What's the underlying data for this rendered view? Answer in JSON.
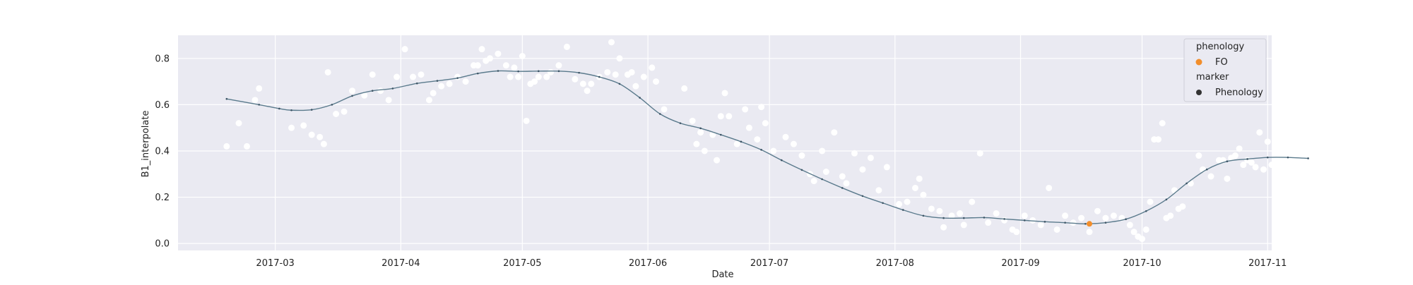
{
  "chart_data": {
    "type": "scatter",
    "xlabel": "Date",
    "ylabel": "B1_interpolate",
    "x_type": "date",
    "xlim": [
      "2017-02-05",
      "2017-11-02"
    ],
    "ylim": [
      -0.03,
      0.9
    ],
    "grid": true,
    "x_ticks": [
      "2017-03",
      "2017-04",
      "2017-05",
      "2017-06",
      "2017-07",
      "2017-08",
      "2017-09",
      "2017-10",
      "2017-11"
    ],
    "x_tick_dates": [
      "2017-03-01",
      "2017-04-01",
      "2017-05-01",
      "2017-06-01",
      "2017-07-01",
      "2017-08-01",
      "2017-09-01",
      "2017-10-01",
      "2017-11-01"
    ],
    "y_ticks": [
      0.0,
      0.2,
      0.4,
      0.6,
      0.8
    ],
    "y_tick_labels": [
      "0.0",
      "0.2",
      "0.4",
      "0.6",
      "0.8"
    ],
    "legend": {
      "placement": "top-right",
      "title_1": "phenology",
      "item_1": "FO",
      "title_2": "marker",
      "item_2": "Phenology"
    },
    "colors": {
      "background": "#eaeaf2",
      "grid": "#ffffff",
      "raw_points": "#ffffff",
      "curve": "#5a7a8c",
      "curve_markers": "#3d5566",
      "phenology_fo": "#f28e2b",
      "phenology_marker": "#333333"
    },
    "series": [
      {
        "kind": "raw_points",
        "points": [
          [
            "2017-02-17",
            0.42
          ],
          [
            "2017-02-20",
            0.52
          ],
          [
            "2017-02-22",
            0.42
          ],
          [
            "2017-02-24",
            0.62
          ],
          [
            "2017-02-25",
            0.67
          ],
          [
            "2017-03-05",
            0.5
          ],
          [
            "2017-03-08",
            0.51
          ],
          [
            "2017-03-10",
            0.47
          ],
          [
            "2017-03-12",
            0.46
          ],
          [
            "2017-03-13",
            0.43
          ],
          [
            "2017-03-14",
            0.74
          ],
          [
            "2017-03-16",
            0.56
          ],
          [
            "2017-03-18",
            0.57
          ],
          [
            "2017-03-20",
            0.66
          ],
          [
            "2017-03-23",
            0.64
          ],
          [
            "2017-03-25",
            0.73
          ],
          [
            "2017-03-27",
            0.66
          ],
          [
            "2017-03-29",
            0.62
          ],
          [
            "2017-03-31",
            0.72
          ],
          [
            "2017-04-02",
            0.84
          ],
          [
            "2017-04-04",
            0.72
          ],
          [
            "2017-04-06",
            0.73
          ],
          [
            "2017-04-08",
            0.62
          ],
          [
            "2017-04-09",
            0.65
          ],
          [
            "2017-04-11",
            0.68
          ],
          [
            "2017-04-13",
            0.69
          ],
          [
            "2017-04-15",
            0.72
          ],
          [
            "2017-04-17",
            0.7
          ],
          [
            "2017-04-19",
            0.77
          ],
          [
            "2017-04-20",
            0.77
          ],
          [
            "2017-04-21",
            0.84
          ],
          [
            "2017-04-22",
            0.79
          ],
          [
            "2017-04-23",
            0.8
          ],
          [
            "2017-04-25",
            0.82
          ],
          [
            "2017-04-27",
            0.77
          ],
          [
            "2017-04-28",
            0.72
          ],
          [
            "2017-04-29",
            0.76
          ],
          [
            "2017-04-30",
            0.72
          ],
          [
            "2017-05-01",
            0.81
          ],
          [
            "2017-05-02",
            0.53
          ],
          [
            "2017-05-03",
            0.69
          ],
          [
            "2017-05-04",
            0.7
          ],
          [
            "2017-05-05",
            0.72
          ],
          [
            "2017-05-07",
            0.72
          ],
          [
            "2017-05-08",
            0.74
          ],
          [
            "2017-05-10",
            0.77
          ],
          [
            "2017-05-12",
            0.85
          ],
          [
            "2017-05-14",
            0.71
          ],
          [
            "2017-05-16",
            0.69
          ],
          [
            "2017-05-17",
            0.66
          ],
          [
            "2017-05-18",
            0.69
          ],
          [
            "2017-05-20",
            0.72
          ],
          [
            "2017-05-22",
            0.74
          ],
          [
            "2017-05-23",
            0.87
          ],
          [
            "2017-05-24",
            0.73
          ],
          [
            "2017-05-25",
            0.8
          ],
          [
            "2017-05-27",
            0.73
          ],
          [
            "2017-05-28",
            0.74
          ],
          [
            "2017-05-29",
            0.68
          ],
          [
            "2017-05-31",
            0.72
          ],
          [
            "2017-06-02",
            0.76
          ],
          [
            "2017-06-03",
            0.7
          ],
          [
            "2017-06-05",
            0.58
          ],
          [
            "2017-06-10",
            0.67
          ],
          [
            "2017-06-12",
            0.53
          ],
          [
            "2017-06-13",
            0.43
          ],
          [
            "2017-06-14",
            0.48
          ],
          [
            "2017-06-15",
            0.4
          ],
          [
            "2017-06-17",
            0.47
          ],
          [
            "2017-06-18",
            0.36
          ],
          [
            "2017-06-19",
            0.55
          ],
          [
            "2017-06-20",
            0.65
          ],
          [
            "2017-06-21",
            0.55
          ],
          [
            "2017-06-23",
            0.43
          ],
          [
            "2017-06-25",
            0.58
          ],
          [
            "2017-06-26",
            0.5
          ],
          [
            "2017-06-28",
            0.45
          ],
          [
            "2017-06-29",
            0.59
          ],
          [
            "2017-06-30",
            0.52
          ],
          [
            "2017-07-02",
            0.4
          ],
          [
            "2017-07-05",
            0.46
          ],
          [
            "2017-07-07",
            0.43
          ],
          [
            "2017-07-09",
            0.38
          ],
          [
            "2017-07-11",
            0.3
          ],
          [
            "2017-07-12",
            0.27
          ],
          [
            "2017-07-14",
            0.4
          ],
          [
            "2017-07-15",
            0.31
          ],
          [
            "2017-07-17",
            0.48
          ],
          [
            "2017-07-19",
            0.29
          ],
          [
            "2017-07-20",
            0.26
          ],
          [
            "2017-07-22",
            0.39
          ],
          [
            "2017-07-24",
            0.32
          ],
          [
            "2017-07-26",
            0.37
          ],
          [
            "2017-07-28",
            0.23
          ],
          [
            "2017-07-30",
            0.33
          ],
          [
            "2017-08-02",
            0.17
          ],
          [
            "2017-08-04",
            0.18
          ],
          [
            "2017-08-06",
            0.24
          ],
          [
            "2017-08-07",
            0.28
          ],
          [
            "2017-08-08",
            0.21
          ],
          [
            "2017-08-10",
            0.15
          ],
          [
            "2017-08-12",
            0.14
          ],
          [
            "2017-08-13",
            0.07
          ],
          [
            "2017-08-15",
            0.12
          ],
          [
            "2017-08-17",
            0.13
          ],
          [
            "2017-08-18",
            0.08
          ],
          [
            "2017-08-20",
            0.18
          ],
          [
            "2017-08-22",
            0.39
          ],
          [
            "2017-08-24",
            0.09
          ],
          [
            "2017-08-26",
            0.13
          ],
          [
            "2017-08-28",
            0.1
          ],
          [
            "2017-08-30",
            0.06
          ],
          [
            "2017-08-31",
            0.05
          ],
          [
            "2017-09-02",
            0.12
          ],
          [
            "2017-09-04",
            0.1
          ],
          [
            "2017-09-06",
            0.08
          ],
          [
            "2017-09-08",
            0.24
          ],
          [
            "2017-09-10",
            0.06
          ],
          [
            "2017-09-12",
            0.12
          ],
          [
            "2017-09-14",
            0.09
          ],
          [
            "2017-09-16",
            0.11
          ],
          [
            "2017-09-18",
            0.05
          ],
          [
            "2017-09-20",
            0.14
          ],
          [
            "2017-09-22",
            0.11
          ],
          [
            "2017-09-24",
            0.12
          ],
          [
            "2017-09-26",
            0.11
          ],
          [
            "2017-09-28",
            0.08
          ],
          [
            "2017-09-29",
            0.05
          ],
          [
            "2017-09-30",
            0.03
          ],
          [
            "2017-10-01",
            0.02
          ],
          [
            "2017-10-02",
            0.06
          ],
          [
            "2017-10-03",
            0.18
          ],
          [
            "2017-10-04",
            0.45
          ],
          [
            "2017-10-05",
            0.45
          ],
          [
            "2017-10-06",
            0.52
          ],
          [
            "2017-10-07",
            0.11
          ],
          [
            "2017-10-08",
            0.12
          ],
          [
            "2017-10-09",
            0.23
          ],
          [
            "2017-10-10",
            0.15
          ],
          [
            "2017-10-11",
            0.16
          ],
          [
            "2017-10-13",
            0.26
          ],
          [
            "2017-10-15",
            0.38
          ],
          [
            "2017-10-16",
            0.32
          ],
          [
            "2017-10-18",
            0.29
          ],
          [
            "2017-10-20",
            0.36
          ],
          [
            "2017-10-21",
            0.36
          ],
          [
            "2017-10-22",
            0.28
          ],
          [
            "2017-10-23",
            0.37
          ],
          [
            "2017-10-24",
            0.38
          ],
          [
            "2017-10-25",
            0.41
          ],
          [
            "2017-10-26",
            0.34
          ],
          [
            "2017-10-27",
            0.36
          ],
          [
            "2017-10-28",
            0.35
          ],
          [
            "2017-10-29",
            0.33
          ],
          [
            "2017-10-30",
            0.48
          ],
          [
            "2017-10-31",
            0.32
          ],
          [
            "2017-11-01",
            0.44
          ],
          [
            "2017-11-02",
            0.34
          ]
        ]
      },
      {
        "kind": "interpolated_curve",
        "points": [
          [
            "2017-02-17",
            0.625
          ],
          [
            "2017-02-25",
            0.6
          ],
          [
            "2017-03-02",
            0.583
          ],
          [
            "2017-03-05",
            0.576
          ],
          [
            "2017-03-10",
            0.578
          ],
          [
            "2017-03-15",
            0.6
          ],
          [
            "2017-03-20",
            0.638
          ],
          [
            "2017-03-25",
            0.66
          ],
          [
            "2017-03-30",
            0.67
          ],
          [
            "2017-04-05",
            0.692
          ],
          [
            "2017-04-10",
            0.703
          ],
          [
            "2017-04-15",
            0.715
          ],
          [
            "2017-04-20",
            0.735
          ],
          [
            "2017-04-25",
            0.746
          ],
          [
            "2017-04-30",
            0.744
          ],
          [
            "2017-05-05",
            0.745
          ],
          [
            "2017-05-10",
            0.745
          ],
          [
            "2017-05-15",
            0.738
          ],
          [
            "2017-05-20",
            0.72
          ],
          [
            "2017-05-25",
            0.69
          ],
          [
            "2017-05-30",
            0.63
          ],
          [
            "2017-06-04",
            0.56
          ],
          [
            "2017-06-09",
            0.52
          ],
          [
            "2017-06-14",
            0.498
          ],
          [
            "2017-06-19",
            0.47
          ],
          [
            "2017-06-24",
            0.44
          ],
          [
            "2017-06-29",
            0.405
          ],
          [
            "2017-07-04",
            0.36
          ],
          [
            "2017-07-09",
            0.318
          ],
          [
            "2017-07-14",
            0.278
          ],
          [
            "2017-07-19",
            0.24
          ],
          [
            "2017-07-24",
            0.205
          ],
          [
            "2017-07-29",
            0.175
          ],
          [
            "2017-08-03",
            0.145
          ],
          [
            "2017-08-08",
            0.12
          ],
          [
            "2017-08-13",
            0.11
          ],
          [
            "2017-08-18",
            0.11
          ],
          [
            "2017-08-23",
            0.112
          ],
          [
            "2017-08-28",
            0.106
          ],
          [
            "2017-09-02",
            0.1
          ],
          [
            "2017-09-07",
            0.094
          ],
          [
            "2017-09-12",
            0.09
          ],
          [
            "2017-09-17",
            0.085
          ],
          [
            "2017-09-22",
            0.09
          ],
          [
            "2017-09-27",
            0.105
          ],
          [
            "2017-10-02",
            0.14
          ],
          [
            "2017-10-07",
            0.19
          ],
          [
            "2017-10-12",
            0.26
          ],
          [
            "2017-10-17",
            0.32
          ],
          [
            "2017-10-22",
            0.355
          ],
          [
            "2017-10-27",
            0.365
          ],
          [
            "2017-11-01",
            0.372
          ],
          [
            "2017-11-06",
            0.372
          ],
          [
            "2017-11-11",
            0.368
          ]
        ]
      },
      {
        "kind": "phenology",
        "name": "FO",
        "points": [
          [
            "2017-09-18",
            0.085
          ]
        ]
      }
    ]
  }
}
